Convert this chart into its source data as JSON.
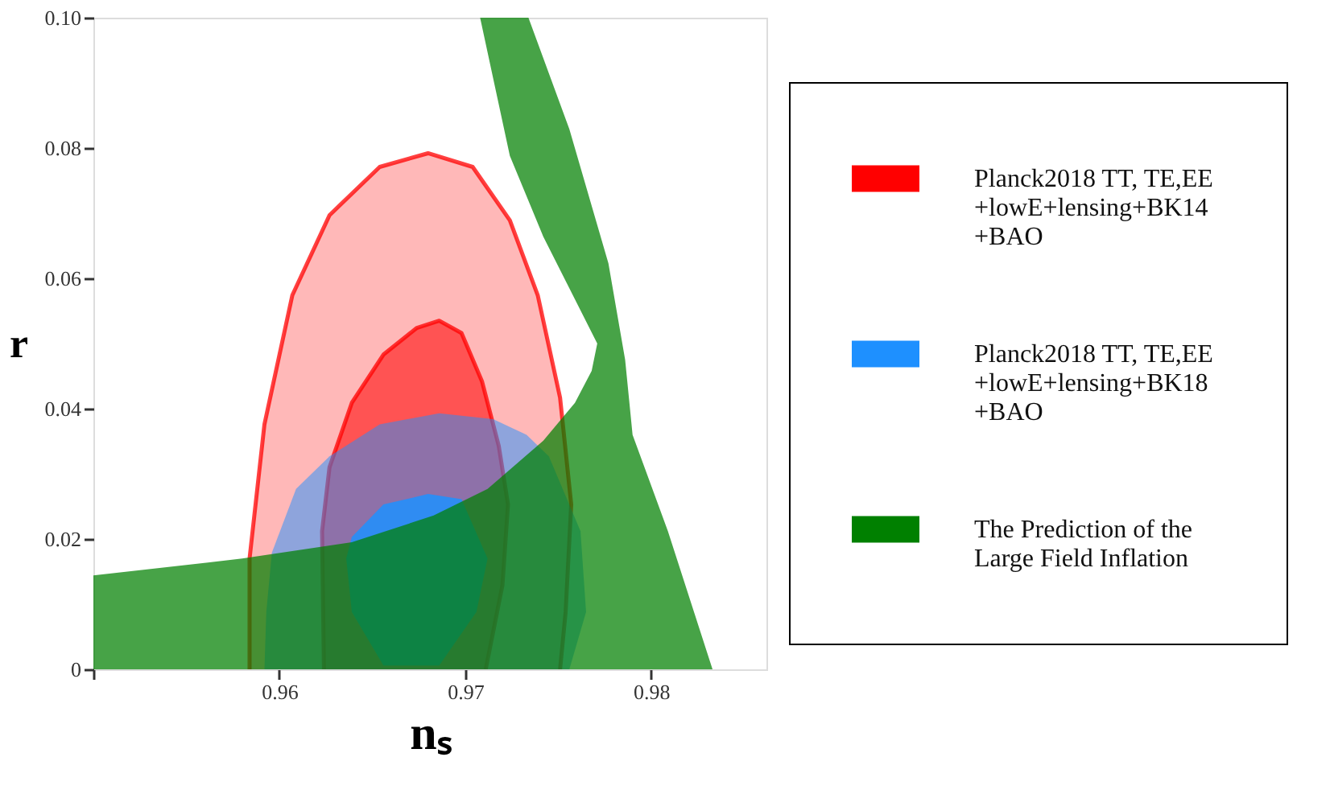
{
  "chart_data": {
    "type": "area",
    "xlabel": "nₛ",
    "ylabel": "r",
    "xlim": [
      0.95,
      0.9862
    ],
    "xticks": [
      {
        "value": 0.95,
        "label": null
      },
      0.96,
      0.97,
      0.98
    ],
    "ylim": [
      0,
      0.1
    ],
    "yticks": [
      0,
      0.02,
      0.04,
      0.06,
      0.08,
      {
        "value": 0.1,
        "label": "0.10"
      }
    ],
    "grid": false,
    "legend": "right",
    "marker": "none",
    "series": [
      {
        "name": "Planck2018 TT, TE,EE\n+lowE+lensing+BK14\n+BAO",
        "color": "#ff0000",
        "x": [
          0.9584,
          0.9584,
          0.9592,
          0.9607,
          0.9627,
          0.9654,
          0.968,
          0.9704,
          0.9724,
          0.9739,
          0.9751,
          0.9757,
          0.9754,
          0.9751
        ],
        "values": [
          0,
          0.017,
          0.0376,
          0.0574,
          0.0697,
          0.0771,
          0.0792,
          0.0771,
          0.0689,
          0.0574,
          0.0417,
          0.0253,
          0.0088,
          0
        ]
      },
      {
        "color": "#ff0000",
        "x": [
          0.9624,
          0.9623,
          0.9627,
          0.9639,
          0.9656,
          0.9674,
          0.9686,
          0.9698,
          0.9709,
          0.9718,
          0.9723,
          0.972,
          0.9711
        ],
        "values": [
          0,
          0.0212,
          0.031,
          0.0409,
          0.0483,
          0.0524,
          0.0535,
          0.0516,
          0.0442,
          0.0343,
          0.0253,
          0.0129,
          0
        ]
      },
      {
        "name": "Planck2018 TT, TE,EE\n+lowE+lensing+BK18\n+BAO",
        "color": "#1e90ff",
        "x": [
          0.9592,
          0.9593,
          0.9596,
          0.9609,
          0.9627,
          0.9654,
          0.9686,
          0.9715,
          0.9733,
          0.9745,
          0.9762,
          0.9765,
          0.9756
        ],
        "values": [
          0,
          0.0088,
          0.0179,
          0.0277,
          0.0327,
          0.0376,
          0.0393,
          0.0384,
          0.036,
          0.0327,
          0.0212,
          0.0088,
          0
        ]
      },
      {
        "color": "#1e90ff",
        "x": [
          0.9636,
          0.9639,
          0.9656,
          0.968,
          0.9698,
          0.9712,
          0.9706,
          0.9686,
          0.9656,
          0.9639
        ],
        "values": [
          0.017,
          0.0203,
          0.0253,
          0.0269,
          0.0261,
          0.017,
          0.0088,
          0.0006,
          0.0006,
          0.0088
        ]
      },
      {
        "name": "The Prediction of the\nLarge Field Inflation",
        "color": "#008000",
        "x": [
          0.95,
          0.95,
          0.958,
          0.9639,
          0.9683,
          0.9712,
          0.9742,
          0.9759,
          0.9768,
          0.9771,
          0.9742,
          0.9724,
          0.9708,
          0.9734,
          0.9756,
          0.9777,
          0.9786,
          0.979,
          0.9809,
          0.9833
        ],
        "values": [
          0,
          0.0144,
          0.017,
          0.0195,
          0.0236,
          0.0277,
          0.0351,
          0.0409,
          0.0458,
          0.05,
          0.0664,
          0.0788,
          0.1,
          0.1,
          0.0829,
          0.0623,
          0.0475,
          0.036,
          0.0212,
          0
        ]
      }
    ]
  }
}
